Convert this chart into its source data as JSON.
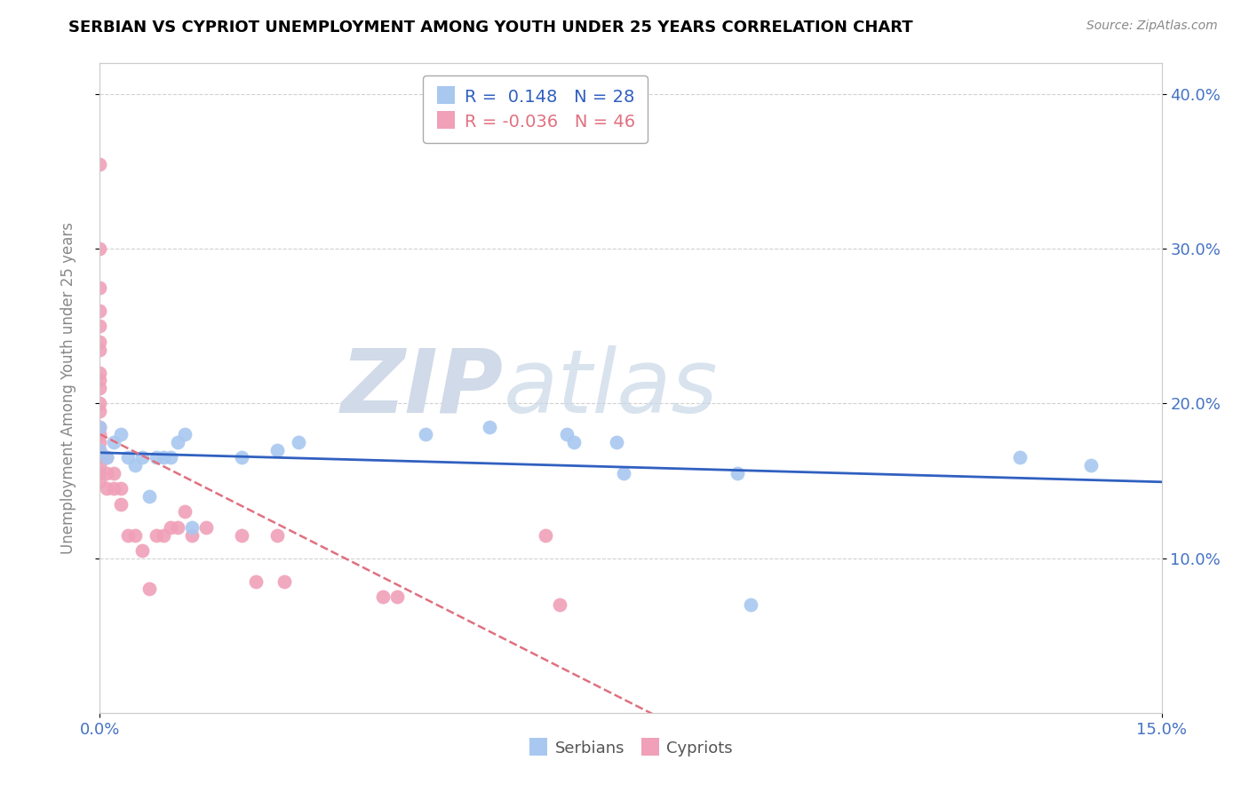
{
  "title": "SERBIAN VS CYPRIOT UNEMPLOYMENT AMONG YOUTH UNDER 25 YEARS CORRELATION CHART",
  "source": "Source: ZipAtlas.com",
  "ylabel": "Unemployment Among Youth under 25 years",
  "xlim": [
    0.0,
    0.15
  ],
  "ylim": [
    0.0,
    0.42
  ],
  "xticks_positions": [
    0.0,
    0.15
  ],
  "xtick_labels": [
    "0.0%",
    "15.0%"
  ],
  "ytick_positions": [
    0.1,
    0.2,
    0.3,
    0.4
  ],
  "ytick_labels": [
    "10.0%",
    "20.0%",
    "30.0%",
    "40.0%"
  ],
  "serbian_color": "#a8c8f0",
  "cypriot_color": "#f0a0b8",
  "serbian_line_color": "#3060c0",
  "cypriot_line_color": "#e07080",
  "watermark_zip": "ZIP",
  "watermark_atlas": "atlas",
  "serbian_x": [
    0.0,
    0.0,
    0.001,
    0.002,
    0.003,
    0.004,
    0.005,
    0.006,
    0.007,
    0.008,
    0.009,
    0.01,
    0.011,
    0.012,
    0.013,
    0.02,
    0.025,
    0.028,
    0.046,
    0.055,
    0.066,
    0.067,
    0.073,
    0.074,
    0.09,
    0.092,
    0.13,
    0.14
  ],
  "serbian_y": [
    0.185,
    0.17,
    0.165,
    0.175,
    0.18,
    0.165,
    0.16,
    0.165,
    0.14,
    0.165,
    0.165,
    0.165,
    0.175,
    0.18,
    0.12,
    0.165,
    0.17,
    0.175,
    0.18,
    0.185,
    0.18,
    0.175,
    0.175,
    0.155,
    0.155,
    0.07,
    0.165,
    0.16
  ],
  "cypriot_x": [
    0.0,
    0.0,
    0.0,
    0.0,
    0.0,
    0.0,
    0.0,
    0.0,
    0.0,
    0.0,
    0.0,
    0.0,
    0.0,
    0.0,
    0.0,
    0.0,
    0.0,
    0.0,
    0.0,
    0.0,
    0.001,
    0.001,
    0.001,
    0.002,
    0.002,
    0.003,
    0.003,
    0.004,
    0.005,
    0.006,
    0.007,
    0.008,
    0.009,
    0.01,
    0.011,
    0.012,
    0.013,
    0.015,
    0.02,
    0.022,
    0.025,
    0.026,
    0.04,
    0.042,
    0.063,
    0.065
  ],
  "cypriot_y": [
    0.355,
    0.3,
    0.275,
    0.26,
    0.25,
    0.24,
    0.235,
    0.22,
    0.215,
    0.21,
    0.2,
    0.195,
    0.185,
    0.18,
    0.175,
    0.17,
    0.165,
    0.16,
    0.155,
    0.15,
    0.165,
    0.155,
    0.145,
    0.155,
    0.145,
    0.145,
    0.135,
    0.115,
    0.115,
    0.105,
    0.08,
    0.115,
    0.115,
    0.12,
    0.12,
    0.13,
    0.115,
    0.12,
    0.115,
    0.085,
    0.115,
    0.085,
    0.075,
    0.075,
    0.115,
    0.07
  ]
}
